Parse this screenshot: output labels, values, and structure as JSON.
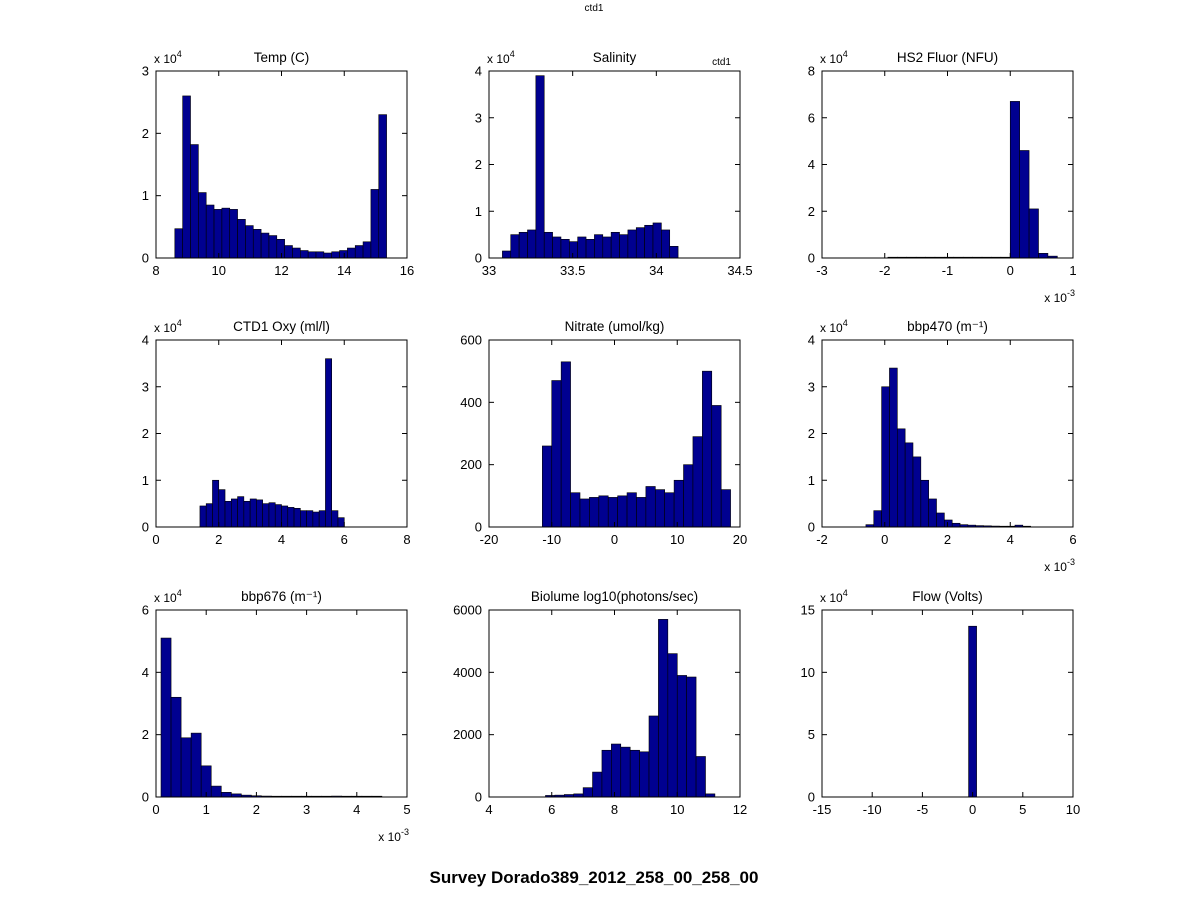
{
  "figure": {
    "top_annotation": "ctd1",
    "axes_annotation": "ctd1",
    "bottom_title": "Survey Dorado389_2012_258_00_258_00",
    "bar_color": "#000090",
    "bar_edge_color": "#000000",
    "axis_color": "#000000",
    "background": "#ffffff"
  },
  "chart_data": [
    {
      "id": "temp",
      "type": "bar",
      "title": "Temp (C)",
      "xlim": [
        8,
        16
      ],
      "xticks": [
        8,
        10,
        12,
        14,
        16
      ],
      "x_exp": null,
      "ylim": [
        0,
        3
      ],
      "yticks": [
        0,
        1,
        2,
        3
      ],
      "y_exp": 4,
      "bin_start": 8.6,
      "bin_width": 0.25,
      "values": [
        0.47,
        2.6,
        1.82,
        1.05,
        0.85,
        0.78,
        0.8,
        0.78,
        0.62,
        0.52,
        0.46,
        0.4,
        0.36,
        0.3,
        0.2,
        0.16,
        0.12,
        0.1,
        0.1,
        0.08,
        0.1,
        0.12,
        0.16,
        0.2,
        0.26,
        1.1,
        2.3
      ]
    },
    {
      "id": "salinity",
      "type": "bar",
      "title": "Salinity",
      "xlim": [
        33,
        34.5
      ],
      "xticks": [
        33,
        33.5,
        34,
        34.5
      ],
      "x_exp": null,
      "ylim": [
        0,
        4
      ],
      "yticks": [
        0,
        1,
        2,
        3,
        4
      ],
      "y_exp": 4,
      "bin_start": 33.08,
      "bin_width": 0.05,
      "values": [
        0.15,
        0.5,
        0.55,
        0.6,
        3.9,
        0.55,
        0.45,
        0.4,
        0.35,
        0.45,
        0.4,
        0.5,
        0.45,
        0.55,
        0.5,
        0.6,
        0.65,
        0.7,
        0.75,
        0.6,
        0.25
      ]
    },
    {
      "id": "hs2-fluor",
      "type": "bar",
      "title": "HS2 Fluor (NFU)",
      "xlim": [
        -3,
        1
      ],
      "xticks": [
        -3,
        -2,
        -1,
        0,
        1
      ],
      "x_exp": -3,
      "ylim": [
        0,
        8
      ],
      "yticks": [
        0,
        2,
        4,
        6,
        8
      ],
      "y_exp": 4,
      "bin_start": -1.95,
      "bin_width": 0.15,
      "values": [
        0.03,
        0.03,
        0.03,
        0.03,
        0.03,
        0.03,
        0.03,
        0.03,
        0.03,
        0.03,
        0.03,
        0.03,
        0.03,
        6.7,
        4.6,
        2.1,
        0.2,
        0.08
      ]
    },
    {
      "id": "ctd1-oxy",
      "type": "bar",
      "title": "CTD1 Oxy (ml/l)",
      "xlim": [
        0,
        8
      ],
      "xticks": [
        0,
        2,
        4,
        6,
        8
      ],
      "x_exp": null,
      "ylim": [
        0,
        4
      ],
      "yticks": [
        0,
        1,
        2,
        3,
        4
      ],
      "y_exp": 4,
      "bin_start": 1.4,
      "bin_width": 0.2,
      "values": [
        0.45,
        0.5,
        1.0,
        0.8,
        0.55,
        0.6,
        0.65,
        0.55,
        0.6,
        0.58,
        0.5,
        0.52,
        0.48,
        0.45,
        0.42,
        0.4,
        0.35,
        0.35,
        0.32,
        0.35,
        3.6,
        0.35,
        0.2
      ]
    },
    {
      "id": "nitrate",
      "type": "bar",
      "title": "Nitrate (umol/kg)",
      "xlim": [
        -20,
        20
      ],
      "xticks": [
        -20,
        -10,
        0,
        10,
        20
      ],
      "x_exp": null,
      "ylim": [
        0,
        600
      ],
      "yticks": [
        0,
        200,
        400,
        600
      ],
      "y_exp": null,
      "bin_start": -11.5,
      "bin_width": 1.5,
      "values": [
        260,
        470,
        530,
        110,
        90,
        95,
        100,
        95,
        100,
        110,
        95,
        130,
        120,
        110,
        150,
        200,
        290,
        500,
        390,
        120
      ]
    },
    {
      "id": "bbp470",
      "type": "bar",
      "title": "bbp470 (m⁻¹)",
      "xlim": [
        -2,
        6
      ],
      "xticks": [
        -2,
        0,
        2,
        4,
        6
      ],
      "x_exp": -3,
      "ylim": [
        0,
        4
      ],
      "yticks": [
        0,
        1,
        2,
        3,
        4
      ],
      "y_exp": 4,
      "bin_start": -0.6,
      "bin_width": 0.25,
      "values": [
        0.05,
        0.35,
        3.0,
        3.4,
        2.1,
        1.8,
        1.5,
        1.0,
        0.6,
        0.3,
        0.15,
        0.08,
        0.05,
        0.04,
        0.03,
        0.025,
        0.02,
        0.015,
        0.015,
        0.04,
        0.015
      ]
    },
    {
      "id": "bbp676",
      "type": "bar",
      "title": "bbp676 (m⁻¹)",
      "xlim": [
        0,
        5
      ],
      "xticks": [
        0,
        1,
        2,
        3,
        4,
        5
      ],
      "x_exp": -3,
      "ylim": [
        0,
        6
      ],
      "yticks": [
        0,
        2,
        4,
        6
      ],
      "y_exp": 4,
      "bin_start": 0.1,
      "bin_width": 0.2,
      "values": [
        5.1,
        3.2,
        1.9,
        2.05,
        1.0,
        0.35,
        0.15,
        0.1,
        0.06,
        0.04,
        0.03,
        0.025,
        0.02,
        0.015,
        0.012,
        0.01,
        0.01,
        0.03,
        0.01,
        0.008,
        0.006,
        0.02
      ]
    },
    {
      "id": "biolume",
      "type": "bar",
      "title": "Biolume log10(photons/sec)",
      "xlim": [
        4,
        12
      ],
      "xticks": [
        4,
        6,
        8,
        10,
        12
      ],
      "x_exp": null,
      "ylim": [
        0,
        6000
      ],
      "yticks": [
        0,
        2000,
        4000,
        6000
      ],
      "y_exp": null,
      "bin_start": 5.8,
      "bin_width": 0.3,
      "values": [
        50,
        60,
        80,
        100,
        300,
        800,
        1500,
        1700,
        1600,
        1500,
        1450,
        2600,
        5700,
        4600,
        3900,
        3850,
        1300,
        100
      ]
    },
    {
      "id": "flow",
      "type": "bar",
      "title": "Flow (Volts)",
      "xlim": [
        -15,
        10
      ],
      "xticks": [
        -15,
        -10,
        -5,
        0,
        5,
        10
      ],
      "x_exp": null,
      "ylim": [
        0,
        15
      ],
      "yticks": [
        0,
        5,
        10,
        15
      ],
      "y_exp": 4,
      "bin_start": -0.4,
      "bin_width": 0.8,
      "values": [
        13.7
      ]
    }
  ]
}
